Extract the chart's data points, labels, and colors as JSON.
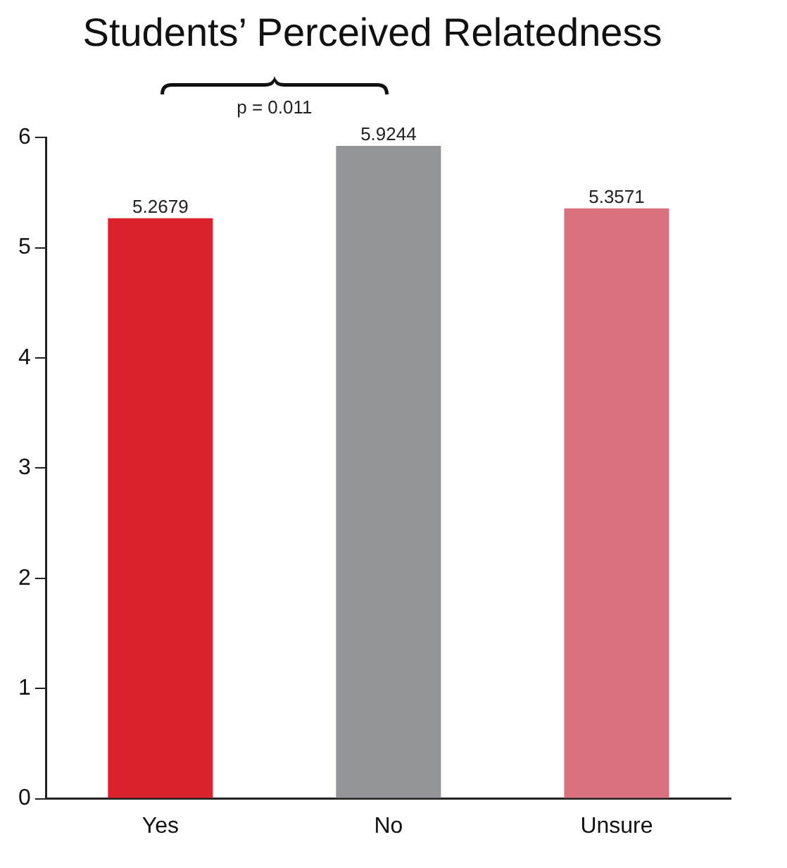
{
  "chart_data": {
    "type": "bar",
    "title": "Students’ Perceived Relatedness",
    "categories": [
      "Yes",
      "No",
      "Unsure"
    ],
    "values": [
      5.2679,
      5.9244,
      5.3571
    ],
    "colors": [
      "#d9222c",
      "#939598",
      "#d9717e"
    ],
    "ylim": [
      0,
      6
    ],
    "yticks": [
      0,
      1,
      2,
      3,
      4,
      5,
      6
    ],
    "grid": false,
    "legend": false,
    "data_labels": true,
    "annotations": [
      "p = 0.011"
    ]
  }
}
